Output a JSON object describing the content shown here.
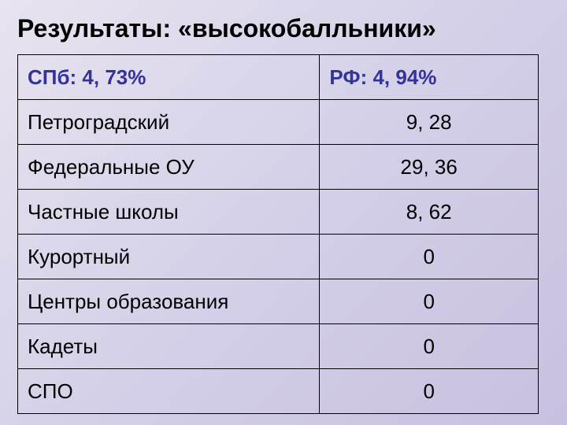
{
  "title": "Результаты: «высокобалльники»",
  "table": {
    "type": "table",
    "columns": [
      {
        "key": "label",
        "align": "left",
        "width_pct": 58
      },
      {
        "key": "value",
        "align": "center",
        "width_pct": 42
      }
    ],
    "header": {
      "label": "СПб: 4, 73%",
      "value": "РФ: 4, 94%"
    },
    "rows": [
      {
        "label": "Петроградский",
        "value": "9, 28"
      },
      {
        "label": "Федеральные ОУ",
        "value": "29, 36"
      },
      {
        "label": "Частные школы",
        "value": "8, 62"
      },
      {
        "label": "Курортный",
        "value": "0"
      },
      {
        "label": "Центры образования",
        "value": "0"
      },
      {
        "label": "Кадеты",
        "value": "0"
      },
      {
        "label": "СПО",
        "value": "0"
      }
    ],
    "border_color": "#000000",
    "header_text_color": "#333399",
    "body_text_color": "#000000",
    "font_family": "Arial",
    "cell_fontsize": 26,
    "title_fontsize": 32,
    "background_gradient": [
      "#e8e4f0",
      "#d4d0e8",
      "#c8c0e0"
    ]
  }
}
